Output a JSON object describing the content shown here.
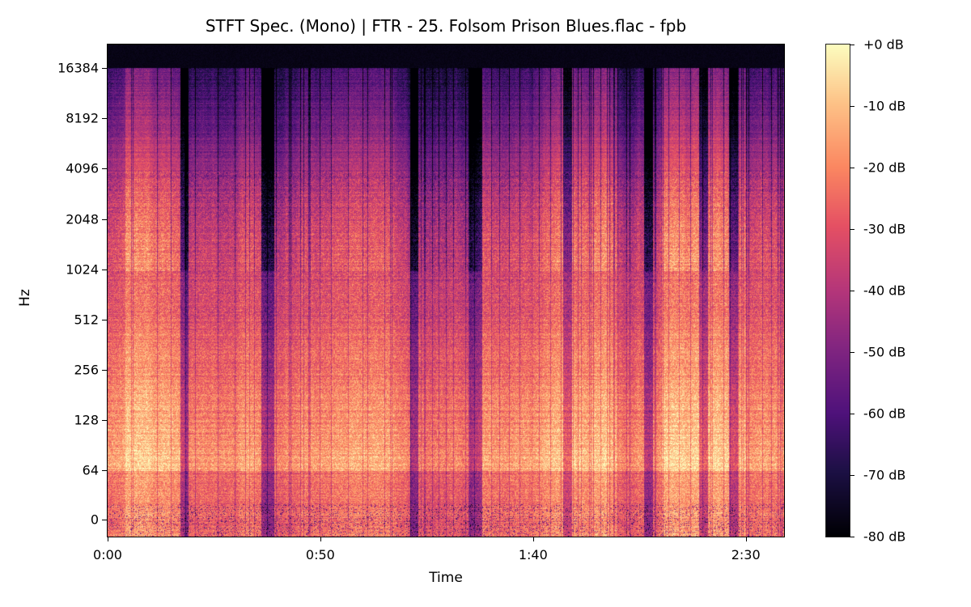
{
  "chart_data": {
    "type": "heatmap",
    "title": "STFT Spec. (Mono) | FTR - 25. Folsom Prison Blues.flac - fpb",
    "xlabel": "Time",
    "ylabel": "Hz",
    "x_ticks": [
      "0:00",
      "0:50",
      "1:40",
      "2:30"
    ],
    "x_tick_seconds": [
      0,
      50,
      100,
      150
    ],
    "xlim_seconds": [
      0,
      159
    ],
    "y_scale": "symlog (base 2)",
    "y_ticks": [
      "0",
      "64",
      "128",
      "256",
      "512",
      "1024",
      "2048",
      "4096",
      "8192",
      "16384"
    ],
    "ylim_hz": [
      0,
      22050
    ],
    "colormap": "magma",
    "colorbar_ticks": [
      "+0 dB",
      "-10 dB",
      "-20 dB",
      "-30 dB",
      "-40 dB",
      "-50 dB",
      "-60 dB",
      "-70 dB",
      "-80 dB"
    ],
    "colorbar_range_db": [
      -80,
      0
    ],
    "content_notes_hz_cutoff": 16000
  }
}
